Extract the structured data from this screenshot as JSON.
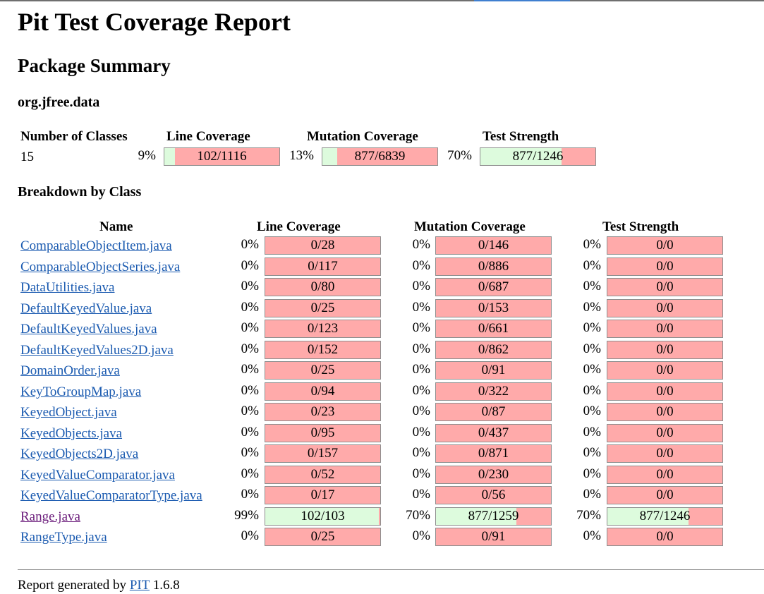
{
  "title": "Pit Test Coverage Report",
  "subtitle": "Package Summary",
  "package_name": "org.jfree.data",
  "summary": {
    "headers": {
      "classes": "Number of Classes",
      "line": "Line Coverage",
      "mutation": "Mutation Coverage",
      "strength": "Test Strength"
    },
    "classes": "15",
    "line": {
      "pct": "9%",
      "label": "102/1116",
      "fraction": 0.091
    },
    "mutation": {
      "pct": "13%",
      "label": "877/6839",
      "fraction": 0.128
    },
    "strength": {
      "pct": "70%",
      "label": "877/1246",
      "fraction": 0.704
    }
  },
  "breakdown_title": "Breakdown by Class",
  "table_headers": {
    "name": "Name",
    "line": "Line Coverage",
    "mutation": "Mutation Coverage",
    "strength": "Test Strength"
  },
  "rows": [
    {
      "name": "ComparableObjectItem.java",
      "visited": false,
      "line": {
        "pct": "0%",
        "label": "0/28",
        "fraction": 0
      },
      "mutation": {
        "pct": "0%",
        "label": "0/146",
        "fraction": 0
      },
      "strength": {
        "pct": "0%",
        "label": "0/0",
        "fraction": 0
      }
    },
    {
      "name": "ComparableObjectSeries.java",
      "visited": false,
      "line": {
        "pct": "0%",
        "label": "0/117",
        "fraction": 0
      },
      "mutation": {
        "pct": "0%",
        "label": "0/886",
        "fraction": 0
      },
      "strength": {
        "pct": "0%",
        "label": "0/0",
        "fraction": 0
      }
    },
    {
      "name": "DataUtilities.java",
      "visited": false,
      "line": {
        "pct": "0%",
        "label": "0/80",
        "fraction": 0
      },
      "mutation": {
        "pct": "0%",
        "label": "0/687",
        "fraction": 0
      },
      "strength": {
        "pct": "0%",
        "label": "0/0",
        "fraction": 0
      }
    },
    {
      "name": "DefaultKeyedValue.java",
      "visited": false,
      "line": {
        "pct": "0%",
        "label": "0/25",
        "fraction": 0
      },
      "mutation": {
        "pct": "0%",
        "label": "0/153",
        "fraction": 0
      },
      "strength": {
        "pct": "0%",
        "label": "0/0",
        "fraction": 0
      }
    },
    {
      "name": "DefaultKeyedValues.java",
      "visited": false,
      "line": {
        "pct": "0%",
        "label": "0/123",
        "fraction": 0
      },
      "mutation": {
        "pct": "0%",
        "label": "0/661",
        "fraction": 0
      },
      "strength": {
        "pct": "0%",
        "label": "0/0",
        "fraction": 0
      }
    },
    {
      "name": "DefaultKeyedValues2D.java",
      "visited": false,
      "line": {
        "pct": "0%",
        "label": "0/152",
        "fraction": 0
      },
      "mutation": {
        "pct": "0%",
        "label": "0/862",
        "fraction": 0
      },
      "strength": {
        "pct": "0%",
        "label": "0/0",
        "fraction": 0
      }
    },
    {
      "name": "DomainOrder.java",
      "visited": false,
      "line": {
        "pct": "0%",
        "label": "0/25",
        "fraction": 0
      },
      "mutation": {
        "pct": "0%",
        "label": "0/91",
        "fraction": 0
      },
      "strength": {
        "pct": "0%",
        "label": "0/0",
        "fraction": 0
      }
    },
    {
      "name": "KeyToGroupMap.java",
      "visited": false,
      "line": {
        "pct": "0%",
        "label": "0/94",
        "fraction": 0
      },
      "mutation": {
        "pct": "0%",
        "label": "0/322",
        "fraction": 0
      },
      "strength": {
        "pct": "0%",
        "label": "0/0",
        "fraction": 0
      }
    },
    {
      "name": "KeyedObject.java",
      "visited": false,
      "line": {
        "pct": "0%",
        "label": "0/23",
        "fraction": 0
      },
      "mutation": {
        "pct": "0%",
        "label": "0/87",
        "fraction": 0
      },
      "strength": {
        "pct": "0%",
        "label": "0/0",
        "fraction": 0
      }
    },
    {
      "name": "KeyedObjects.java",
      "visited": false,
      "line": {
        "pct": "0%",
        "label": "0/95",
        "fraction": 0
      },
      "mutation": {
        "pct": "0%",
        "label": "0/437",
        "fraction": 0
      },
      "strength": {
        "pct": "0%",
        "label": "0/0",
        "fraction": 0
      }
    },
    {
      "name": "KeyedObjects2D.java",
      "visited": false,
      "line": {
        "pct": "0%",
        "label": "0/157",
        "fraction": 0
      },
      "mutation": {
        "pct": "0%",
        "label": "0/871",
        "fraction": 0
      },
      "strength": {
        "pct": "0%",
        "label": "0/0",
        "fraction": 0
      }
    },
    {
      "name": "KeyedValueComparator.java",
      "visited": false,
      "line": {
        "pct": "0%",
        "label": "0/52",
        "fraction": 0
      },
      "mutation": {
        "pct": "0%",
        "label": "0/230",
        "fraction": 0
      },
      "strength": {
        "pct": "0%",
        "label": "0/0",
        "fraction": 0
      }
    },
    {
      "name": "KeyedValueComparatorType.java",
      "visited": false,
      "line": {
        "pct": "0%",
        "label": "0/17",
        "fraction": 0
      },
      "mutation": {
        "pct": "0%",
        "label": "0/56",
        "fraction": 0
      },
      "strength": {
        "pct": "0%",
        "label": "0/0",
        "fraction": 0
      }
    },
    {
      "name": "Range.java",
      "visited": true,
      "line": {
        "pct": "99%",
        "label": "102/103",
        "fraction": 0.99
      },
      "mutation": {
        "pct": "70%",
        "label": "877/1259",
        "fraction": 0.697
      },
      "strength": {
        "pct": "70%",
        "label": "877/1246",
        "fraction": 0.704
      }
    },
    {
      "name": "RangeType.java",
      "visited": false,
      "line": {
        "pct": "0%",
        "label": "0/25",
        "fraction": 0
      },
      "mutation": {
        "pct": "0%",
        "label": "0/91",
        "fraction": 0
      },
      "strength": {
        "pct": "0%",
        "label": "0/0",
        "fraction": 0
      }
    }
  ],
  "footer": {
    "prefix": "Report generated by ",
    "link": "PIT",
    "version": " 1.6.8"
  },
  "colors": {
    "covered": "#ddfbdd",
    "uncovered": "#ffaaaa",
    "link": "#1a5ab0",
    "visited_link": "#6a1b7a"
  }
}
